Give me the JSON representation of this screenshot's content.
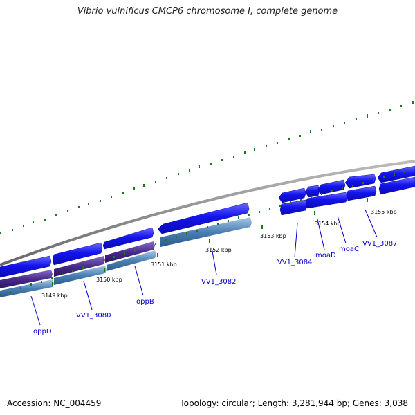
{
  "title": "Vibrio vulnificus CMCP6 chromosome I, complete genome",
  "footer": {
    "accession": "Accession: NC_004459",
    "summary": "Topology: circular; Length: 3,281,944 bp; Genes: 3,038"
  },
  "colors": {
    "cds": "#1414ee",
    "gene": "#4a2a8a",
    "rna": "#4a7fb4",
    "tick": "#1a7a1a",
    "backbone": "#888888",
    "label": "#0000cc"
  },
  "kbp_labels": [
    "3149 kbp",
    "3150 kbp",
    "3151 kbp",
    "3152 kbp",
    "3153 kbp",
    "3154 kbp",
    "3155 kbp"
  ],
  "gene_labels": [
    "oppD",
    "VV1_3080",
    "oppB",
    "VV1_3082",
    "VV1_3084",
    "moaD",
    "moaC",
    "VV1_3087"
  ]
}
